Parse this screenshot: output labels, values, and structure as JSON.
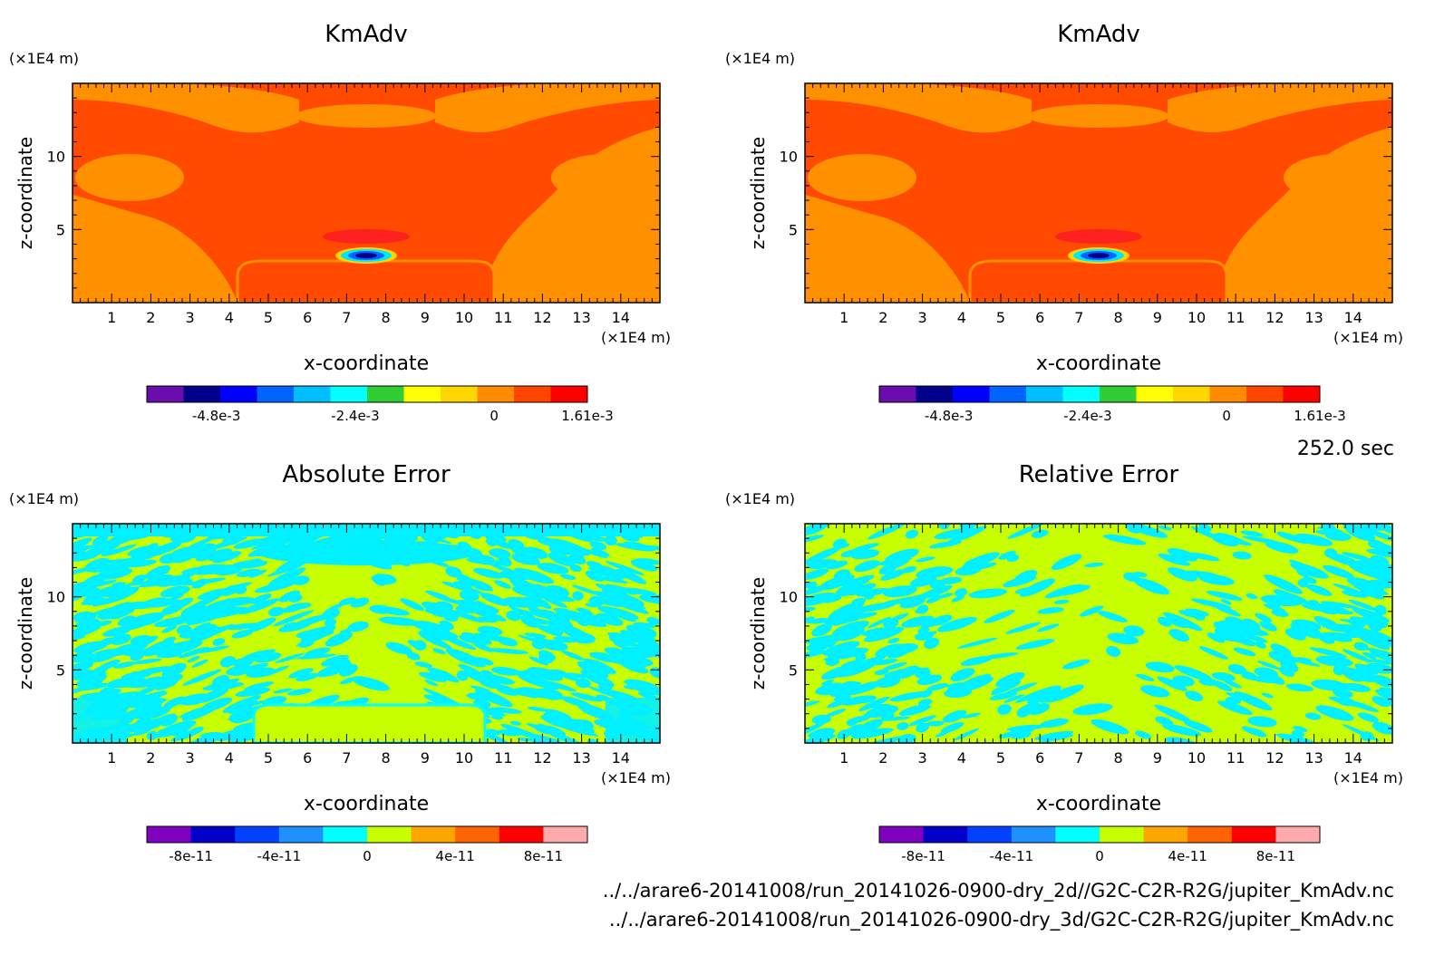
{
  "time_label": "252.0 sec",
  "file_paths": [
    "../../arare6-20141008/run_20141026-0900-dry_2d//G2C-C2R-R2G/jupiter_KmAdv.nc",
    "../../arare6-20141008/run_20141026-0900-dry_3d/G2C-C2R-R2G/jupiter_KmAdv.nc"
  ],
  "chart_data": [
    {
      "type": "heatmap",
      "title": "KmAdv",
      "xlabel": "x-coordinate",
      "ylabel": "z-coordinate",
      "x_unit": "(×1E4 m)",
      "y_unit": "(×1E4 m)",
      "xlim": [
        0,
        15
      ],
      "ylim": [
        0,
        15
      ],
      "x_ticks": [
        1,
        2,
        3,
        4,
        5,
        6,
        7,
        8,
        9,
        10,
        11,
        12,
        13,
        14
      ],
      "y_ticks": [
        5,
        10
      ],
      "colorbar": {
        "colors": [
          "#6a0dad",
          "#00008b",
          "#0000ff",
          "#0064ff",
          "#00bfff",
          "#00ffff",
          "#32cd32",
          "#ffff00",
          "#ffd700",
          "#ff8c00",
          "#ff4500",
          "#ff0000"
        ],
        "tick_labels": [
          "-4.8e-3",
          "-2.4e-3",
          "0",
          "1.61e-3"
        ],
        "tick_values": [
          -0.0048,
          -0.0024,
          0,
          0.00161
        ],
        "range": [
          -0.006,
          0.00161
        ]
      }
    },
    {
      "type": "heatmap",
      "title": "KmAdv",
      "xlabel": "x-coordinate",
      "ylabel": "z-coordinate",
      "x_unit": "(×1E4 m)",
      "y_unit": "(×1E4 m)",
      "xlim": [
        0,
        15
      ],
      "ylim": [
        0,
        15
      ],
      "x_ticks": [
        1,
        2,
        3,
        4,
        5,
        6,
        7,
        8,
        9,
        10,
        11,
        12,
        13,
        14
      ],
      "y_ticks": [
        5,
        10
      ],
      "colorbar": {
        "colors": [
          "#6a0dad",
          "#00008b",
          "#0000ff",
          "#0064ff",
          "#00bfff",
          "#00ffff",
          "#32cd32",
          "#ffff00",
          "#ffd700",
          "#ff8c00",
          "#ff4500",
          "#ff0000"
        ],
        "tick_labels": [
          "-4.8e-3",
          "-2.4e-3",
          "0",
          "1.61e-3"
        ],
        "tick_values": [
          -0.0048,
          -0.0024,
          0,
          0.00161
        ],
        "range": [
          -0.006,
          0.00161
        ]
      }
    },
    {
      "type": "heatmap",
      "title": "Absolute Error",
      "xlabel": "x-coordinate",
      "ylabel": "z-coordinate",
      "x_unit": "(×1E4 m)",
      "y_unit": "(×1E4 m)",
      "xlim": [
        0,
        15
      ],
      "ylim": [
        0,
        15
      ],
      "x_ticks": [
        1,
        2,
        3,
        4,
        5,
        6,
        7,
        8,
        9,
        10,
        11,
        12,
        13,
        14
      ],
      "y_ticks": [
        5,
        10
      ],
      "colorbar": {
        "colors": [
          "#8000c0",
          "#0000c8",
          "#0040ff",
          "#1e90ff",
          "#00ffff",
          "#c8ff00",
          "#ffa500",
          "#ff6400",
          "#ff0000",
          "#ffaaaa"
        ],
        "tick_labels": [
          "-8e-11",
          "-4e-11",
          "0",
          "4e-11",
          "8e-11"
        ],
        "tick_values": [
          -8e-11,
          -4e-11,
          0,
          4e-11,
          8e-11
        ],
        "range": [
          -1e-10,
          1e-10
        ]
      }
    },
    {
      "type": "heatmap",
      "title": "Relative Error",
      "xlabel": "x-coordinate",
      "ylabel": "z-coordinate",
      "x_unit": "(×1E4 m)",
      "y_unit": "(×1E4 m)",
      "xlim": [
        0,
        15
      ],
      "ylim": [
        0,
        15
      ],
      "x_ticks": [
        1,
        2,
        3,
        4,
        5,
        6,
        7,
        8,
        9,
        10,
        11,
        12,
        13,
        14
      ],
      "y_ticks": [
        5,
        10
      ],
      "colorbar": {
        "colors": [
          "#8000c0",
          "#0000c8",
          "#0040ff",
          "#1e90ff",
          "#00ffff",
          "#c8ff00",
          "#ffa500",
          "#ff6400",
          "#ff0000",
          "#ffaaaa"
        ],
        "tick_labels": [
          "-8e-11",
          "-4e-11",
          "0",
          "4e-11",
          "8e-11"
        ],
        "tick_values": [
          -8e-11,
          -4e-11,
          0,
          4e-11,
          8e-11
        ],
        "range": [
          -1e-10,
          1e-10
        ]
      }
    }
  ]
}
